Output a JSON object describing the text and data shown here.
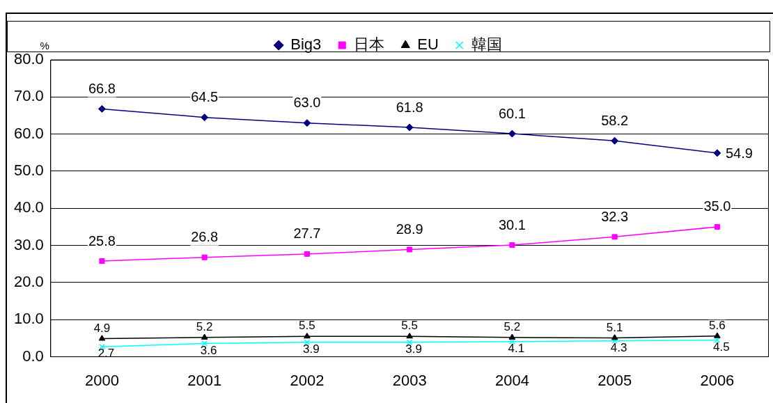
{
  "chart_data": {
    "type": "line",
    "categories": [
      "2000",
      "2001",
      "2002",
      "2003",
      "2004",
      "2005",
      "2006"
    ],
    "ylabel": "%",
    "ylim": [
      0,
      80
    ],
    "yticks": [
      {
        "value": 0,
        "label": "0.0"
      },
      {
        "value": 10,
        "label": "10.0"
      },
      {
        "value": 20,
        "label": "20.0"
      },
      {
        "value": 30,
        "label": "30.0"
      },
      {
        "value": 40,
        "label": "40.0"
      },
      {
        "value": 50,
        "label": "50.0"
      },
      {
        "value": 60,
        "label": "60.0"
      },
      {
        "value": 70,
        "label": "70.0"
      },
      {
        "value": 80,
        "label": "80.0"
      }
    ],
    "grid": "y",
    "legend": "top",
    "line_style": "solid",
    "series": [
      {
        "name": "Big3",
        "color": "#000080",
        "marker": "diamond",
        "values": [
          66.8,
          64.5,
          63.0,
          61.8,
          60.1,
          58.2,
          54.9
        ],
        "value_labels": [
          "66.8",
          "64.5",
          "63.0",
          "61.8",
          "60.1",
          "58.2",
          "54.9"
        ]
      },
      {
        "name": "日本",
        "color": "#ff00ff",
        "marker": "square",
        "values": [
          25.8,
          26.8,
          27.7,
          28.9,
          30.1,
          32.3,
          35.0
        ],
        "value_labels": [
          "25.8",
          "26.8",
          "27.7",
          "28.9",
          "30.1",
          "32.3",
          "35.0"
        ]
      },
      {
        "name": "EU",
        "color": "#000000",
        "marker": "triangle",
        "values": [
          4.9,
          5.2,
          5.5,
          5.5,
          5.2,
          5.1,
          5.6
        ],
        "value_labels": [
          "4.9",
          "5.2",
          "5.5",
          "5.5",
          "5.2",
          "5.1",
          "5.6"
        ]
      },
      {
        "name": "韓国",
        "color": "#00ffff",
        "marker": "cross",
        "values": [
          2.7,
          3.6,
          3.9,
          3.9,
          4.1,
          4.3,
          4.5
        ],
        "value_labels": [
          "2.7",
          "3.6",
          "3.9",
          "3.9",
          "4.1",
          "4.3",
          "4.5"
        ]
      }
    ]
  }
}
